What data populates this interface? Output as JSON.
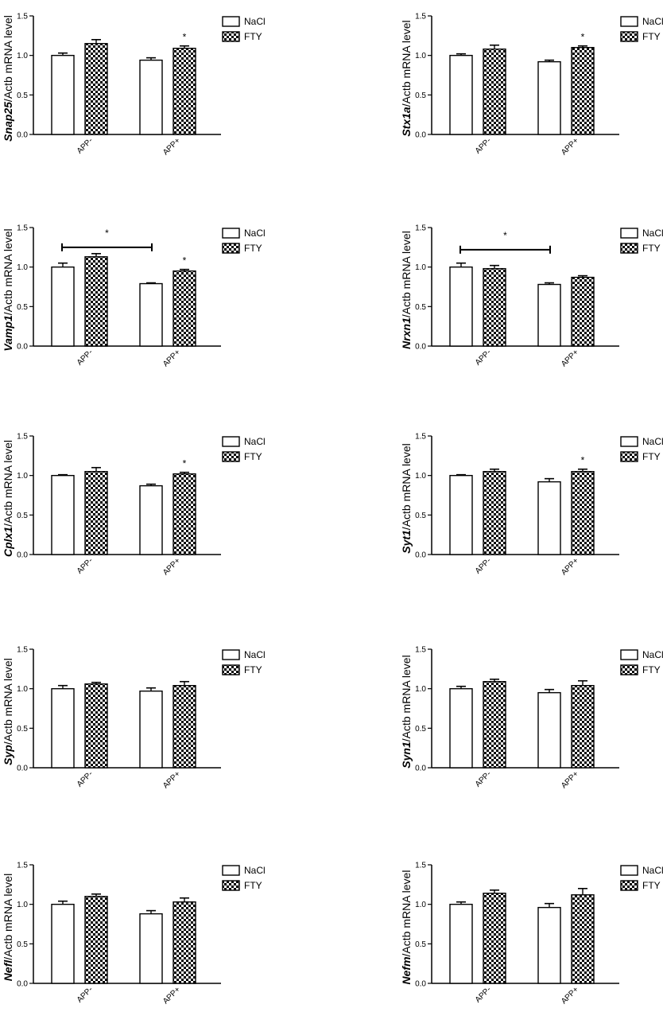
{
  "legend": {
    "entries": [
      "NaCl",
      "FTY"
    ]
  },
  "chart_data": [
    {
      "type": "bar",
      "gene": "Snap25",
      "ylabel_suffix": "/Actb mRNA level",
      "categories": [
        "APP-",
        "APP+"
      ],
      "series": [
        {
          "name": "NaCl",
          "values": [
            1.0,
            0.94
          ],
          "errors": [
            0.03,
            0.03
          ]
        },
        {
          "name": "FTY",
          "values": [
            1.15,
            1.09
          ],
          "errors": [
            0.05,
            0.03
          ]
        }
      ],
      "ylim": [
        0,
        1.5
      ],
      "yticks": [
        "0.0",
        "0.5",
        "1.0",
        "1.5"
      ],
      "sig_text": "*",
      "sig_markers": [
        {
          "category": 1,
          "series": 1
        }
      ],
      "bracket": false
    },
    {
      "type": "bar",
      "gene": "Stx1a",
      "ylabel_suffix": "/Actb mRNA level",
      "categories": [
        "APP-",
        "APP+"
      ],
      "series": [
        {
          "name": "NaCl",
          "values": [
            1.0,
            0.92
          ],
          "errors": [
            0.02,
            0.02
          ]
        },
        {
          "name": "FTY",
          "values": [
            1.08,
            1.1
          ],
          "errors": [
            0.05,
            0.02
          ]
        }
      ],
      "ylim": [
        0,
        1.5
      ],
      "yticks": [
        "0.0",
        "0.5",
        "1.0",
        "1.5"
      ],
      "sig_text": "*",
      "sig_markers": [
        {
          "category": 1,
          "series": 1
        }
      ],
      "bracket": false
    },
    {
      "type": "bar",
      "gene": "Vamp1",
      "ylabel_suffix": "/Actb mRNA level",
      "categories": [
        "APP-",
        "APP+"
      ],
      "series": [
        {
          "name": "NaCl",
          "values": [
            1.0,
            0.79
          ],
          "errors": [
            0.05,
            0.01
          ]
        },
        {
          "name": "FTY",
          "values": [
            1.13,
            0.95
          ],
          "errors": [
            0.04,
            0.02
          ]
        }
      ],
      "ylim": [
        0,
        1.5
      ],
      "yticks": [
        "0.0",
        "0.5",
        "1.0",
        "1.5"
      ],
      "sig_text": "*",
      "sig_markers": [
        {
          "category": 1,
          "series": 1
        }
      ],
      "bracket": true,
      "bracket_y": 1.25
    },
    {
      "type": "bar",
      "gene": "Nrxn1",
      "ylabel_suffix": "/Actb mRNA level",
      "categories": [
        "APP-",
        "APP+"
      ],
      "series": [
        {
          "name": "NaCl",
          "values": [
            1.0,
            0.78
          ],
          "errors": [
            0.05,
            0.02
          ]
        },
        {
          "name": "FTY",
          "values": [
            0.98,
            0.87
          ],
          "errors": [
            0.04,
            0.02
          ]
        }
      ],
      "ylim": [
        0,
        1.5
      ],
      "yticks": [
        "0.0",
        "0.5",
        "1.0",
        "1.5"
      ],
      "sig_text": "*",
      "sig_markers": [],
      "bracket": true,
      "bracket_y": 1.22
    },
    {
      "type": "bar",
      "gene": "Cplx1",
      "ylabel_suffix": "/Actb mRNA level",
      "categories": [
        "APP-",
        "APP+"
      ],
      "series": [
        {
          "name": "NaCl",
          "values": [
            1.0,
            0.87
          ],
          "errors": [
            0.01,
            0.02
          ]
        },
        {
          "name": "FTY",
          "values": [
            1.05,
            1.02
          ],
          "errors": [
            0.05,
            0.02
          ]
        }
      ],
      "ylim": [
        0,
        1.5
      ],
      "yticks": [
        "0.0",
        "0.5",
        "1.0",
        "1.5"
      ],
      "sig_text": "*",
      "sig_markers": [
        {
          "category": 1,
          "series": 1
        }
      ],
      "bracket": false
    },
    {
      "type": "bar",
      "gene": "Syt1",
      "ylabel_suffix": "/Actb mRNA level",
      "categories": [
        "APP-",
        "APP+"
      ],
      "series": [
        {
          "name": "NaCl",
          "values": [
            1.0,
            0.92
          ],
          "errors": [
            0.01,
            0.04
          ]
        },
        {
          "name": "FTY",
          "values": [
            1.05,
            1.05
          ],
          "errors": [
            0.03,
            0.03
          ]
        }
      ],
      "ylim": [
        0,
        1.5
      ],
      "yticks": [
        "0.0",
        "0.5",
        "1.0",
        "1.5"
      ],
      "sig_text": "*",
      "sig_markers": [
        {
          "category": 1,
          "series": 1
        }
      ],
      "bracket": false
    },
    {
      "type": "bar",
      "gene": "Syp",
      "ylabel_suffix": "/Actb mRNA level",
      "categories": [
        "APP-",
        "APP+"
      ],
      "series": [
        {
          "name": "NaCl",
          "values": [
            1.0,
            0.97
          ],
          "errors": [
            0.04,
            0.04
          ]
        },
        {
          "name": "FTY",
          "values": [
            1.06,
            1.04
          ],
          "errors": [
            0.02,
            0.05
          ]
        }
      ],
      "ylim": [
        0,
        1.5
      ],
      "yticks": [
        "0.0",
        "0.5",
        "1.0",
        "1.5"
      ],
      "sig_text": "*",
      "sig_markers": [],
      "bracket": false
    },
    {
      "type": "bar",
      "gene": "Syn1",
      "ylabel_suffix": "/Actb mRNA level",
      "categories": [
        "APP-",
        "APP+"
      ],
      "series": [
        {
          "name": "NaCl",
          "values": [
            1.0,
            0.95
          ],
          "errors": [
            0.03,
            0.04
          ]
        },
        {
          "name": "FTY",
          "values": [
            1.09,
            1.04
          ],
          "errors": [
            0.03,
            0.06
          ]
        }
      ],
      "ylim": [
        0,
        1.5
      ],
      "yticks": [
        "0.0",
        "0.5",
        "1.0",
        "1.5"
      ],
      "sig_text": "*",
      "sig_markers": [],
      "bracket": false
    },
    {
      "type": "bar",
      "gene": "Nefl",
      "ylabel_suffix": "/Actb mRNA level",
      "categories": [
        "APP-",
        "APP+"
      ],
      "series": [
        {
          "name": "NaCl",
          "values": [
            1.0,
            0.88
          ],
          "errors": [
            0.04,
            0.04
          ]
        },
        {
          "name": "FTY",
          "values": [
            1.1,
            1.03
          ],
          "errors": [
            0.03,
            0.05
          ]
        }
      ],
      "ylim": [
        0,
        1.5
      ],
      "yticks": [
        "0.0",
        "0.5",
        "1.0",
        "1.5"
      ],
      "sig_text": "*",
      "sig_markers": [],
      "bracket": false
    },
    {
      "type": "bar",
      "gene": "Nefm",
      "ylabel_suffix": "/Actb mRNA level",
      "categories": [
        "APP-",
        "APP+"
      ],
      "series": [
        {
          "name": "NaCl",
          "values": [
            1.0,
            0.96
          ],
          "errors": [
            0.03,
            0.05
          ]
        },
        {
          "name": "FTY",
          "values": [
            1.14,
            1.12
          ],
          "errors": [
            0.04,
            0.08
          ]
        }
      ],
      "ylim": [
        0,
        1.5
      ],
      "yticks": [
        "0.0",
        "0.5",
        "1.0",
        "1.5"
      ],
      "sig_text": "*",
      "sig_markers": [],
      "bracket": false
    }
  ]
}
